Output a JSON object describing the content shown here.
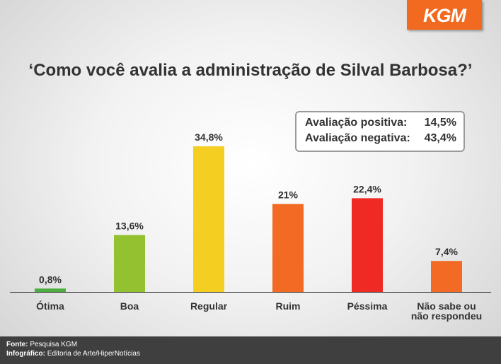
{
  "logo": {
    "text": "KGM"
  },
  "chart_data": {
    "type": "bar",
    "title": "‘Como você avalia a administração de Silval Barbosa?’",
    "categories": [
      "Ótima",
      "Boa",
      "Regular",
      "Ruim",
      "Péssima",
      "Não sabe ou\nnão respondeu"
    ],
    "values": [
      0.8,
      13.6,
      34.8,
      21,
      22.4,
      7.4
    ],
    "value_labels": [
      "0,8%",
      "13,6%",
      "34,8%",
      "21%",
      "22,4%",
      "7,4%"
    ],
    "colors": [
      "#4cae3e",
      "#93c12f",
      "#f4cf22",
      "#f26a24",
      "#ef2a25",
      "#f26a24"
    ],
    "ylim": [
      0,
      34.8
    ],
    "grid": false,
    "legend": "none"
  },
  "summary": {
    "positive_label": "Avaliação positiva:",
    "positive_value": "14,5%",
    "negative_label": "Avaliação negativa:",
    "negative_value": "43,4%"
  },
  "footer": {
    "source_label": "Fonte:",
    "source_value": "Pesquisa KGM",
    "infographic_label": "Infográfico:",
    "infographic_value": "Editoria de Arte/HiperNotícias"
  }
}
